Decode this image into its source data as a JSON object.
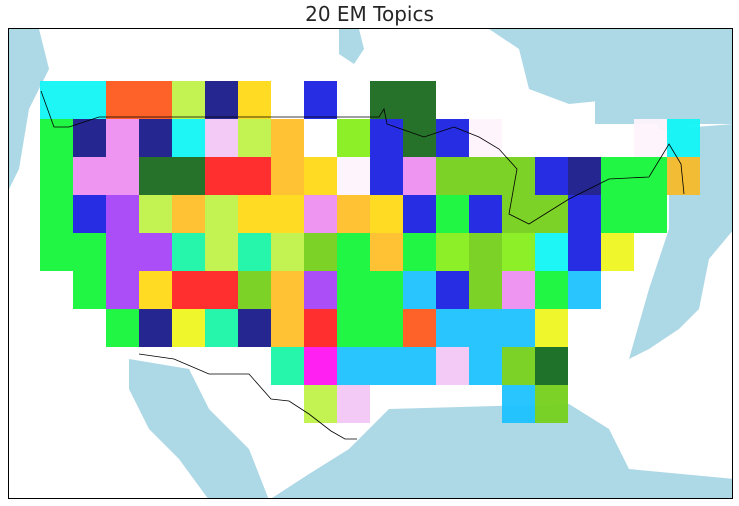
{
  "title": "20 EM Topics",
  "colors": {
    "water": "#add8e6",
    "land": "#ffffff",
    "border": "#000000"
  },
  "grid": {
    "rows": [
      [
        "#12f5f5",
        "#12f5f5",
        "#ff5a1c",
        "#ff5a1c",
        "#c0f24a",
        "#1a1a8a",
        "#ffd918",
        null,
        "#1a22e0",
        null,
        "#1a6a1f",
        "#1a6a1f",
        null,
        null,
        null,
        null,
        null,
        null,
        null,
        null
      ],
      [
        "#16f53a",
        "#1a1a8a",
        "#ec8ff0",
        "#1a1a8a",
        "#12f5f5",
        "#f2c6f5",
        "#c0f24a",
        "#ffbf2a",
        "#ffffff",
        "#86ee1c",
        "#1a22e0",
        "#1a6a1f",
        "#1a22e0",
        "#fdf3fc",
        null,
        null,
        null,
        null,
        "#fdf3fc",
        "#12f5f5"
      ],
      [
        "#16f53a",
        "#ec8ff0",
        "#ec8ff0",
        "#1a6a1f",
        "#1a6a1f",
        "#ff2424",
        "#ff2424",
        "#ffbf2a",
        "#ffd918",
        "#fdf3fc",
        "#1a22e0",
        "#ec8ff0",
        "#76d01c",
        "#76d01c",
        "#76d01c",
        "#1a22e0",
        "#1a1a8a",
        "#16f53a",
        "#16f53a",
        "#f5bc2a"
      ],
      [
        "#16f53a",
        "#1a22e0",
        "#a844f7",
        "#c0f24a",
        "#ffbf2a",
        "#c0f24a",
        "#ffd918",
        "#ffd918",
        "#ec8ff0",
        "#ffbf2a",
        "#ffd918",
        "#1a22e0",
        "#16f53a",
        "#1a22e0",
        "#76d01c",
        "#76d01c",
        "#1a22e0",
        "#16f53a",
        "#16f53a",
        null
      ],
      [
        "#16f53a",
        "#16f53a",
        "#a844f7",
        "#a844f7",
        "#1af5a6",
        "#c0f24a",
        "#1af5a6",
        "#c0f24a",
        "#76d01c",
        "#16f53a",
        "#ffbf2a",
        "#16f53a",
        "#86ee1c",
        "#76d01c",
        "#86ee1c",
        "#12f5f5",
        "#1a22e0",
        "#eef520",
        null,
        null
      ],
      [
        null,
        "#16f53a",
        "#a844f7",
        "#ffd918",
        "#ff2424",
        "#ff2424",
        "#76d01c",
        "#ffbf2a",
        "#a844f7",
        "#16f53a",
        "#16f53a",
        "#1cc2ff",
        "#1a22e0",
        "#76d01c",
        "#ec8ff0",
        "#16f53a",
        "#1cc2ff",
        null,
        null,
        null
      ],
      [
        null,
        null,
        "#16f53a",
        "#1a1a8a",
        "#eef520",
        "#1af5a6",
        "#1a1a8a",
        "#ffbf2a",
        "#ff2424",
        "#16f53a",
        "#16f53a",
        "#ff5a1c",
        "#1cc2ff",
        "#1cc2ff",
        "#1cc2ff",
        "#eef520",
        null,
        null,
        null,
        null
      ],
      [
        null,
        null,
        null,
        null,
        null,
        null,
        null,
        "#1af5a6",
        "#ff14f0",
        "#1cc2ff",
        "#1cc2ff",
        "#1cc2ff",
        "#f2c6f5",
        "#1cc2ff",
        "#76d01c",
        "#136a1f",
        null,
        null,
        null,
        null
      ],
      [
        null,
        null,
        null,
        null,
        null,
        null,
        null,
        null,
        "#c0f24a",
        "#f2c6f5",
        null,
        null,
        null,
        null,
        "#1cc2ff",
        "#76d01c",
        null,
        null,
        null,
        null
      ]
    ]
  }
}
